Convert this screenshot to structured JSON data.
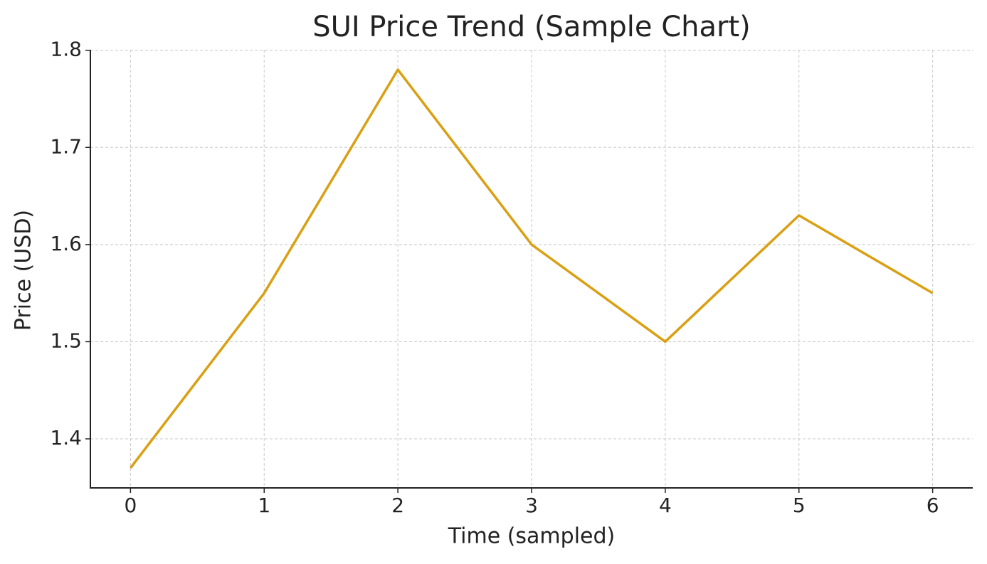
{
  "chart_data": {
    "type": "line",
    "title": "SUI Price Trend (Sample Chart)",
    "x_label": "Time (sampled)",
    "y_label": "Price (USD)",
    "x": [
      0,
      1,
      2,
      3,
      4,
      5,
      6
    ],
    "series": [
      {
        "name": "SUI",
        "color": "#daa014",
        "values": [
          1.37,
          1.55,
          1.78,
          1.6,
          1.5,
          1.63,
          1.55
        ]
      }
    ],
    "xlim": [
      -0.3,
      6.3
    ],
    "xticks": [
      0,
      1,
      2,
      3,
      4,
      5,
      6
    ],
    "ylim": [
      1.3495,
      1.8005
    ],
    "yticks": [
      1.4,
      1.5,
      1.6,
      1.7,
      1.8
    ],
    "grid": true
  }
}
